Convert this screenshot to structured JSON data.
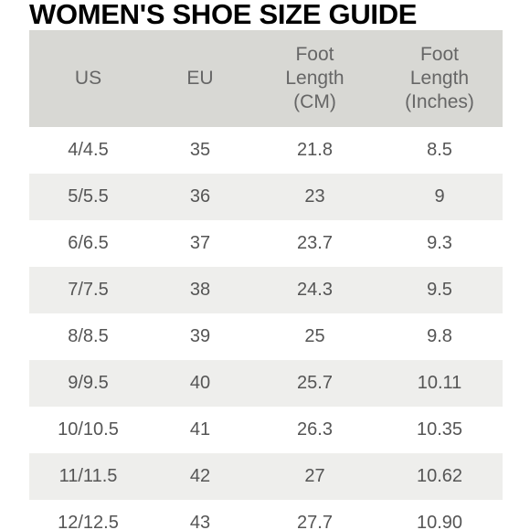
{
  "title": "WOMEN'S SHOE SIZE GUIDE",
  "table": {
    "headers": [
      "US",
      "EU",
      "Foot\nLength\n(CM)",
      "Foot\nLength\n(Inches)"
    ],
    "rows": [
      [
        "4/4.5",
        "35",
        "21.8",
        "8.5"
      ],
      [
        "5/5.5",
        "36",
        "23",
        "9"
      ],
      [
        "6/6.5",
        "37",
        "23.7",
        "9.3"
      ],
      [
        "7/7.5",
        "38",
        "24.3",
        "9.5"
      ],
      [
        "8/8.5",
        "39",
        "25",
        "9.8"
      ],
      [
        "9/9.5",
        "40",
        "25.7",
        "10.11"
      ],
      [
        "10/10.5",
        "41",
        "26.3",
        "10.35"
      ],
      [
        "11/11.5",
        "42",
        "27",
        "10.62"
      ],
      [
        "12/12.5",
        "43",
        "27.7",
        "10.90"
      ]
    ]
  },
  "colors": {
    "header_bg": "#d8d8d4",
    "stripe_bg": "#eeeeec",
    "text": "#555555",
    "title": "#000000"
  }
}
